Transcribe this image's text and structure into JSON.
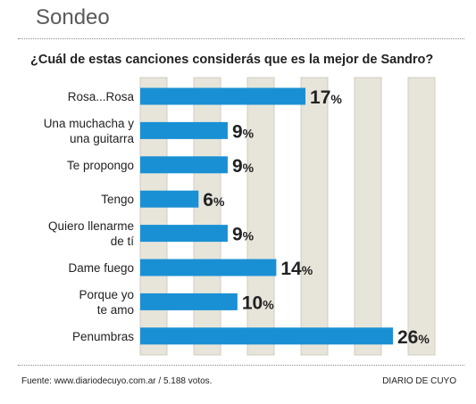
{
  "header": {
    "title": "Sondeo"
  },
  "question": "¿Cuál de estas canciones considerás que es la mejor de Sandro?",
  "footer": {
    "source": "Fuente: www.diariodecuyo.com.ar / 5.188 votos.",
    "brand": "DIARIO DE CUYO"
  },
  "colors": {
    "bar": "#1a90d4",
    "column": "#e7e5da",
    "column_border": "#cfcdc2"
  },
  "chart_data": {
    "type": "bar",
    "orientation": "horizontal",
    "title": "¿Cuál de estas canciones considerás que es la mejor de Sandro?",
    "unit": "%",
    "xlim": [
      0,
      30
    ],
    "categories": [
      [
        "Rosa...Rosa"
      ],
      [
        "Una muchacha y",
        "una guitarra"
      ],
      [
        "Te propongo"
      ],
      [
        "Tengo"
      ],
      [
        "Quiero llenarme",
        "de tí"
      ],
      [
        "Dame fuego"
      ],
      [
        "Porque yo",
        "te amo"
      ],
      [
        "Penumbras"
      ]
    ],
    "values": [
      17,
      9,
      9,
      6,
      9,
      14,
      10,
      26
    ]
  }
}
